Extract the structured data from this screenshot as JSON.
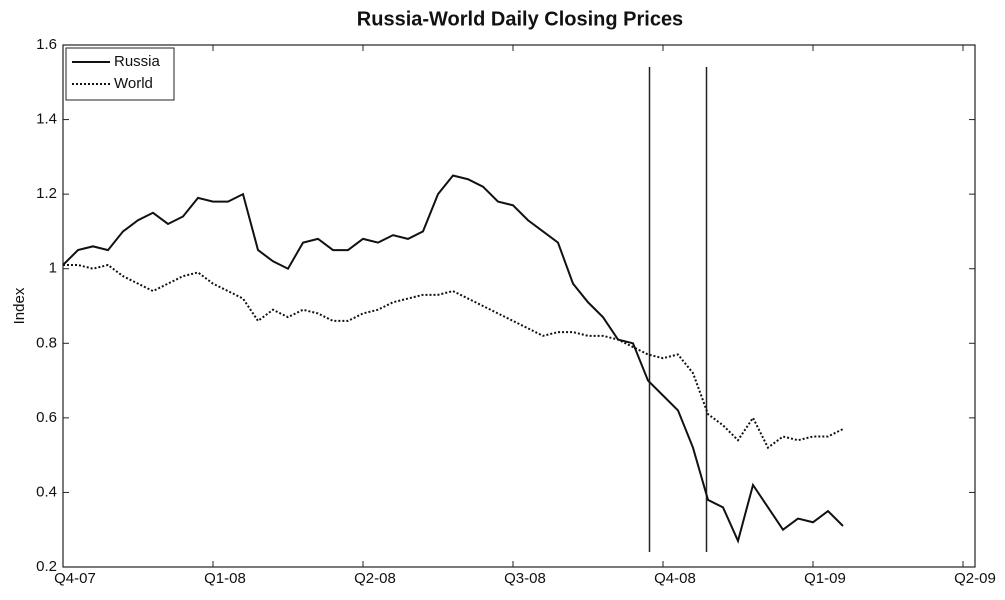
{
  "chart_data": {
    "type": "line",
    "title": "Russia-World Daily Closing Prices",
    "y_label": "Index",
    "xlim": [
      0,
      6.08
    ],
    "xticks": [
      {
        "value": 0,
        "label": "Q4-07"
      },
      {
        "value": 1,
        "label": "Q1-08"
      },
      {
        "value": 2,
        "label": "Q2-08"
      },
      {
        "value": 3,
        "label": "Q3-08"
      },
      {
        "value": 4,
        "label": "Q4-08"
      },
      {
        "value": 5,
        "label": "Q1-09"
      },
      {
        "value": 6,
        "label": "Q2-09"
      }
    ],
    "ylim": [
      0.2,
      1.6
    ],
    "yticks": [
      0.2,
      0.4,
      0.6,
      0.8,
      1,
      1.2,
      1.4,
      1.6
    ],
    "legend": "upper-left",
    "vlines": [
      3.91,
      4.29
    ],
    "x": [
      0,
      0.1,
      0.2,
      0.3,
      0.4,
      0.5,
      0.6,
      0.7,
      0.8,
      0.9,
      1,
      1.1,
      1.2,
      1.3,
      1.4,
      1.5,
      1.6,
      1.7,
      1.8,
      1.9,
      2,
      2.1,
      2.2,
      2.3,
      2.4,
      2.5,
      2.6,
      2.7,
      2.8,
      2.9,
      3,
      3.1,
      3.2,
      3.3,
      3.4,
      3.5,
      3.6,
      3.7,
      3.8,
      3.9,
      4,
      4.1,
      4.2,
      4.3,
      4.4,
      4.5,
      4.6,
      4.7,
      4.8,
      4.9,
      5,
      5.1,
      5.2
    ],
    "series": [
      {
        "name": "Russia",
        "color": "#111111",
        "dash": "solid",
        "values": [
          1.01,
          1.05,
          1.06,
          1.05,
          1.1,
          1.13,
          1.15,
          1.12,
          1.14,
          1.19,
          1.18,
          1.18,
          1.2,
          1.05,
          1.02,
          1.0,
          1.07,
          1.08,
          1.05,
          1.05,
          1.08,
          1.07,
          1.09,
          1.08,
          1.1,
          1.2,
          1.25,
          1.24,
          1.22,
          1.18,
          1.17,
          1.13,
          1.1,
          1.07,
          0.96,
          0.91,
          0.87,
          0.81,
          0.8,
          0.7,
          0.66,
          0.62,
          0.52,
          0.38,
          0.36,
          0.27,
          0.42,
          0.36,
          0.3,
          0.33,
          0.32,
          0.35,
          0.31
        ]
      },
      {
        "name": "World",
        "color": "#111111",
        "dash": "dotted",
        "values": [
          1.01,
          1.01,
          1.0,
          1.01,
          0.98,
          0.96,
          0.94,
          0.96,
          0.98,
          0.99,
          0.96,
          0.94,
          0.92,
          0.86,
          0.89,
          0.87,
          0.89,
          0.88,
          0.86,
          0.86,
          0.88,
          0.89,
          0.91,
          0.92,
          0.93,
          0.93,
          0.94,
          0.92,
          0.9,
          0.88,
          0.86,
          0.84,
          0.82,
          0.83,
          0.83,
          0.82,
          0.82,
          0.81,
          0.79,
          0.77,
          0.76,
          0.77,
          0.72,
          0.61,
          0.58,
          0.54,
          0.6,
          0.52,
          0.55,
          0.54,
          0.55,
          0.55,
          0.57
        ]
      }
    ]
  }
}
